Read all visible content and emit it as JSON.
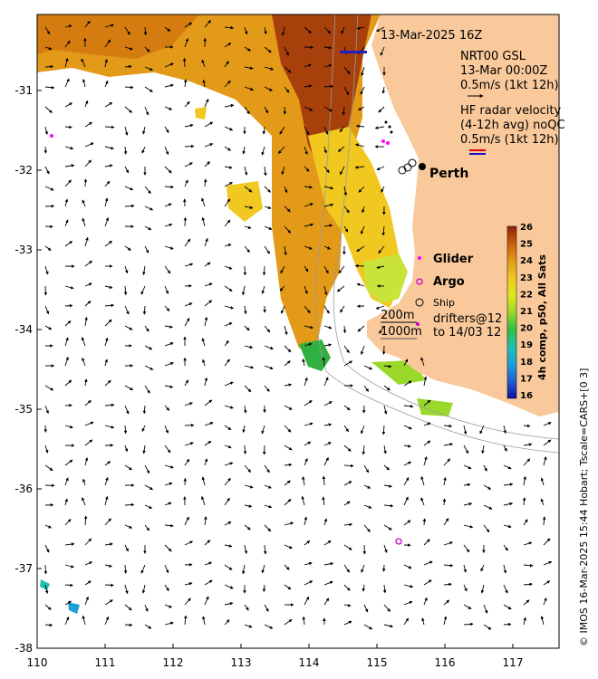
{
  "map": {
    "date": "13-Mar-2025 16Z",
    "nrt_title": "NRT00 GSL",
    "nrt_time": "13-Mar 00:00Z",
    "nrt_scale": "0.5m/s (1kt 12h)",
    "hf_title": "HF radar velocity",
    "hf_sub": "(4-12h avg) noQC",
    "hf_scale": "0.5m/s (1kt 12h)",
    "city": "Perth",
    "legend_glider": "Glider",
    "legend_argo": "Argo",
    "legend_ship": "Ship",
    "drifters_line1": "drifters@12",
    "drifters_line2": "to 14/03 12",
    "contour_200": "200m",
    "contour_1000": "1000m",
    "colorbar_title": "4h comp, p50, All Sats",
    "colorbar_ticks": [
      "26",
      "25",
      "24",
      "23",
      "22",
      "21",
      "20",
      "19",
      "18",
      "17",
      "16"
    ],
    "x_ticks": [
      "110",
      "111",
      "112",
      "113",
      "114",
      "115",
      "116",
      "117"
    ],
    "y_ticks": [
      "-31",
      "-32",
      "-33",
      "-34",
      "-35",
      "-36",
      "-37",
      "-38"
    ],
    "credit": "© IMOS 16-Mar-2025 15:44 Hobart; Tscale=CARS+[0 3]",
    "colors": {
      "land": "#f9c99b",
      "warm": "#c8600a",
      "mid": "#e2a318",
      "cool": "#c9e33a",
      "glider": "#ff00ff",
      "argo": "#cc00cc"
    }
  }
}
